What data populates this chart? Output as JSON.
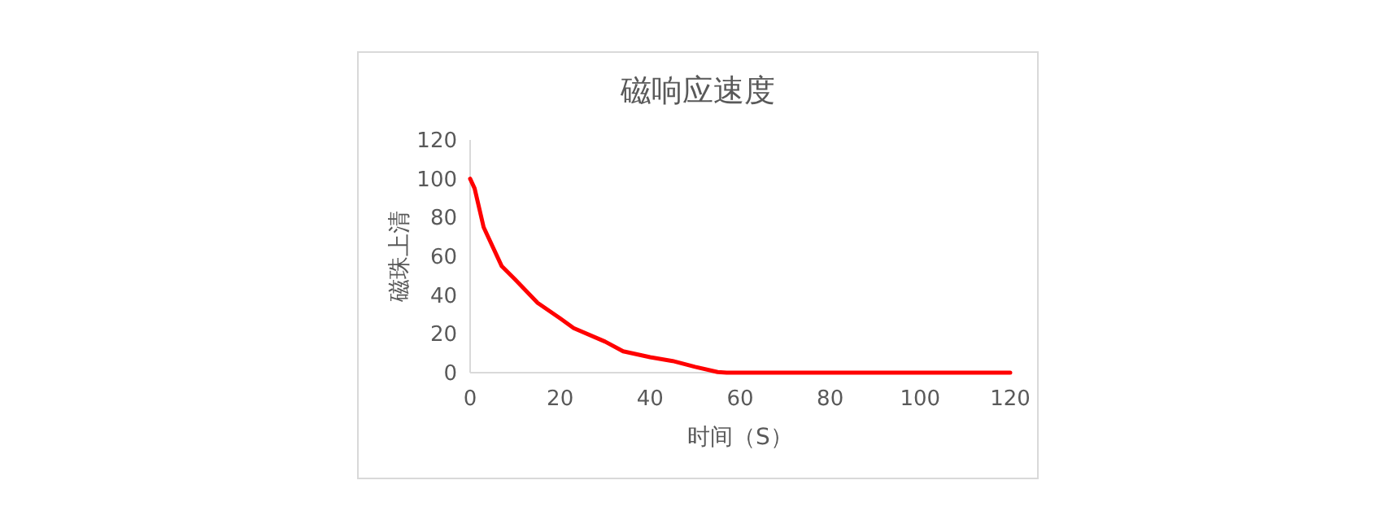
{
  "chart_data": {
    "type": "line",
    "title": "磁响应速度",
    "xlabel": "时间（S）",
    "ylabel": "磁珠上清",
    "xlim": [
      0,
      120
    ],
    "xticks": [
      0,
      20,
      40,
      60,
      80,
      100,
      120
    ],
    "ylim": [
      0,
      120
    ],
    "yticks": [
      0,
      20,
      40,
      60,
      80,
      100,
      120
    ],
    "grid": false,
    "series": [
      {
        "color": "#ff0000",
        "x": [
          0,
          1,
          3,
          7,
          10,
          15,
          20,
          23,
          30,
          34,
          40,
          45,
          50,
          55,
          57,
          60,
          120
        ],
        "values": [
          100,
          95,
          75,
          55,
          48,
          36,
          28,
          23,
          16,
          11,
          8,
          6,
          3,
          0.3,
          0,
          0,
          0
        ]
      }
    ]
  }
}
